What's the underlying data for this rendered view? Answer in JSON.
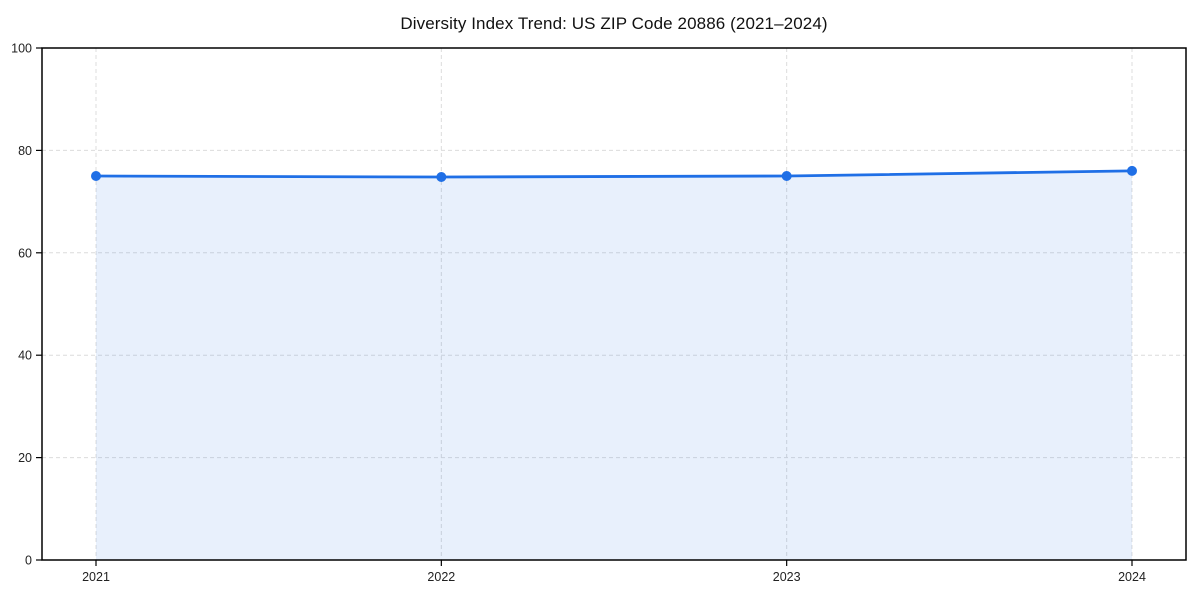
{
  "chart_data": {
    "type": "area",
    "title": "Diversity Index Trend: US ZIP Code 20886 (2021–2024)",
    "categories": [
      "2021",
      "2022",
      "2023",
      "2024"
    ],
    "series": [
      {
        "name": "Diversity Index",
        "values": [
          75,
          74.8,
          75,
          76
        ]
      }
    ],
    "xlabel": "",
    "ylabel": "",
    "ylim": [
      0,
      100
    ],
    "yticks": [
      0,
      20,
      40,
      60,
      80,
      100
    ],
    "grid": true,
    "grid_style": "dashed",
    "legend_position": "none",
    "marker": "circle",
    "colors": {
      "line": "#1f6fe6",
      "marker": "#1f6fe6",
      "fill": "#1f6fe6",
      "fill_opacity": 0.1,
      "grid": "#dcdcdc",
      "axis": "#000000",
      "title_text": "#111111",
      "tick_text": "#222222",
      "background": "#ffffff"
    }
  }
}
